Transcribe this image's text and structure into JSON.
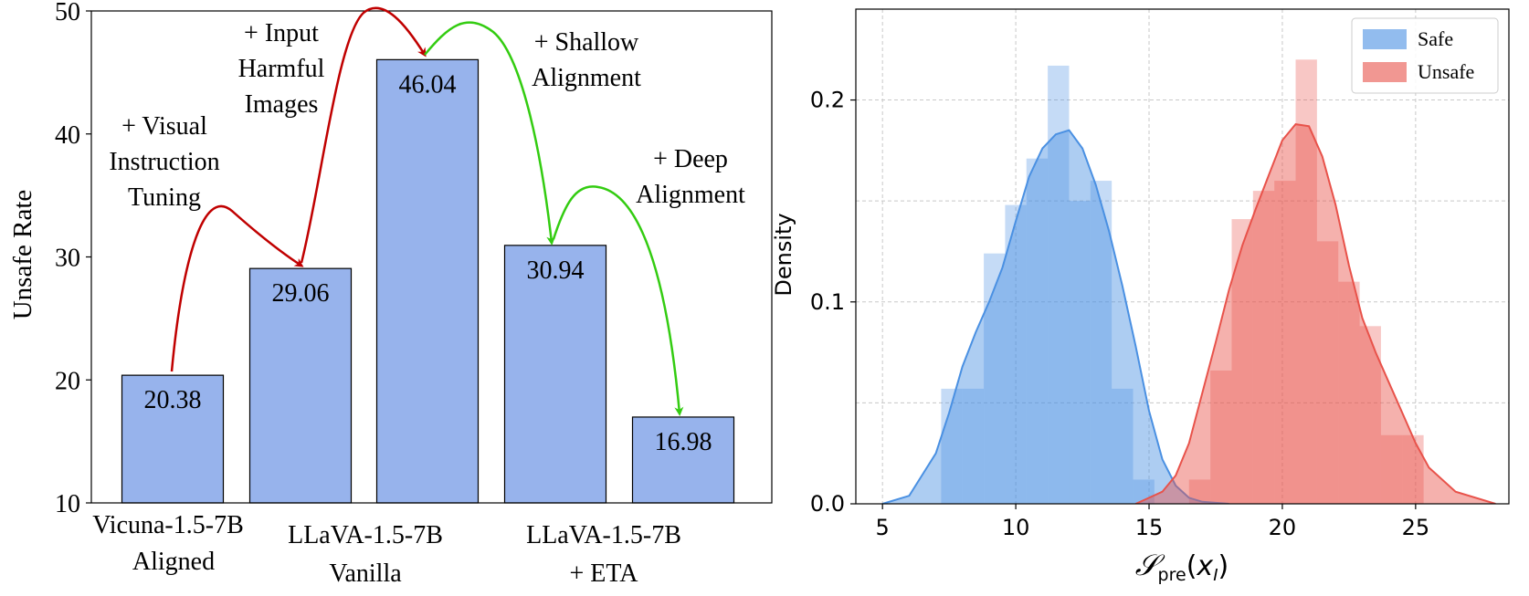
{
  "colors": {
    "bar_fill": "#97b3ec",
    "safe": "#4a90e2",
    "unsafe": "#e8524a",
    "red_arrow": "#c00000",
    "green_arrow": "#33cc11"
  },
  "chart_data": [
    {
      "type": "bar",
      "ylabel": "Unsafe Rate",
      "ylim": [
        10,
        50
      ],
      "yticks": [
        "10",
        "20",
        "30",
        "40",
        "50"
      ],
      "categories": [
        "Vicuna-1.5-7B Aligned",
        "LLaVA-1.5-7B Vanilla (+ Input Harmful Images)",
        "LLaVA-1.5-7B Vanilla (+ Visual Instruction Tuning)",
        "LLaVA-1.5-7B + ETA (+ Shallow Alignment)",
        "LLaVA-1.5-7B + ETA (+ Deep Alignment)"
      ],
      "values": [
        20.38,
        29.06,
        46.04,
        30.94,
        16.98
      ],
      "value_labels": [
        "20.38",
        "29.06",
        "46.04",
        "30.94",
        "16.98"
      ],
      "xlabels": [
        {
          "line1": "Vicuna-1.5-7B",
          "line2": "Aligned"
        },
        {
          "line1": "LLaVA-1.5-7B",
          "line2": "Vanilla"
        },
        {
          "line1": "LLaVA-1.5-7B",
          "line2": "+ ETA"
        }
      ],
      "annotations": [
        {
          "lines": [
            "+ Visual",
            "Instruction",
            "Tuning"
          ],
          "color": "red"
        },
        {
          "lines": [
            "+ Input",
            "Harmful",
            "Images"
          ],
          "color": "red"
        },
        {
          "lines": [
            "+ Shallow",
            "Alignment"
          ],
          "color": "green"
        },
        {
          "lines": [
            "+ Deep",
            "Alignment"
          ],
          "color": "green"
        }
      ]
    },
    {
      "type": "histogram",
      "xlabel": "𝒮pre(xI)",
      "ylabel": "Density",
      "xlim": [
        4,
        28.5
      ],
      "ylim": [
        0,
        0.245
      ],
      "xticks": [
        5,
        10,
        15,
        20,
        25
      ],
      "yticks": [
        0.0,
        0.1,
        0.2
      ],
      "ytick_labels": [
        "0.0",
        "0.1",
        "0.2"
      ],
      "grid": true,
      "legend_position": "top-right",
      "series": [
        {
          "name": "Safe",
          "bin_edges": [
            7.2,
            8.0,
            8.8,
            9.6,
            10.4,
            11.2,
            12.0,
            12.8,
            13.6,
            14.4,
            15.2,
            16.0
          ],
          "bin_heights": [
            0.057,
            0.057,
            0.124,
            0.148,
            0.171,
            0.217,
            0.15,
            0.16,
            0.057,
            0.012,
            0.0
          ],
          "kde_x": [
            5.0,
            6.0,
            7.0,
            7.5,
            8.0,
            8.5,
            9.0,
            9.5,
            10.0,
            10.5,
            11.0,
            11.5,
            12.0,
            12.5,
            13.0,
            13.5,
            14.0,
            14.5,
            15.0,
            15.5,
            16.0,
            16.5,
            17.0,
            18.0
          ],
          "kde_y": [
            0.0,
            0.004,
            0.025,
            0.045,
            0.068,
            0.085,
            0.1,
            0.117,
            0.14,
            0.162,
            0.176,
            0.183,
            0.185,
            0.176,
            0.158,
            0.135,
            0.108,
            0.078,
            0.046,
            0.022,
            0.009,
            0.003,
            0.001,
            0.0
          ]
        },
        {
          "name": "Unsafe",
          "bin_edges": [
            16.5,
            17.3,
            18.1,
            18.9,
            19.7,
            20.5,
            21.3,
            22.1,
            22.9,
            23.7,
            24.5,
            25.3
          ],
          "bin_heights": [
            0.012,
            0.066,
            0.141,
            0.155,
            0.16,
            0.22,
            0.13,
            0.11,
            0.088,
            0.034,
            0.034
          ],
          "kde_x": [
            14.5,
            15.5,
            16.0,
            16.5,
            17.0,
            17.5,
            18.0,
            18.5,
            19.0,
            19.5,
            20.0,
            20.5,
            21.0,
            21.5,
            22.0,
            22.5,
            23.0,
            23.5,
            24.0,
            24.5,
            25.0,
            25.5,
            26.5,
            28.0
          ],
          "kde_y": [
            0.0,
            0.006,
            0.014,
            0.03,
            0.055,
            0.08,
            0.106,
            0.128,
            0.146,
            0.163,
            0.18,
            0.188,
            0.187,
            0.172,
            0.148,
            0.118,
            0.092,
            0.075,
            0.06,
            0.045,
            0.03,
            0.018,
            0.006,
            0.0
          ]
        }
      ]
    }
  ]
}
